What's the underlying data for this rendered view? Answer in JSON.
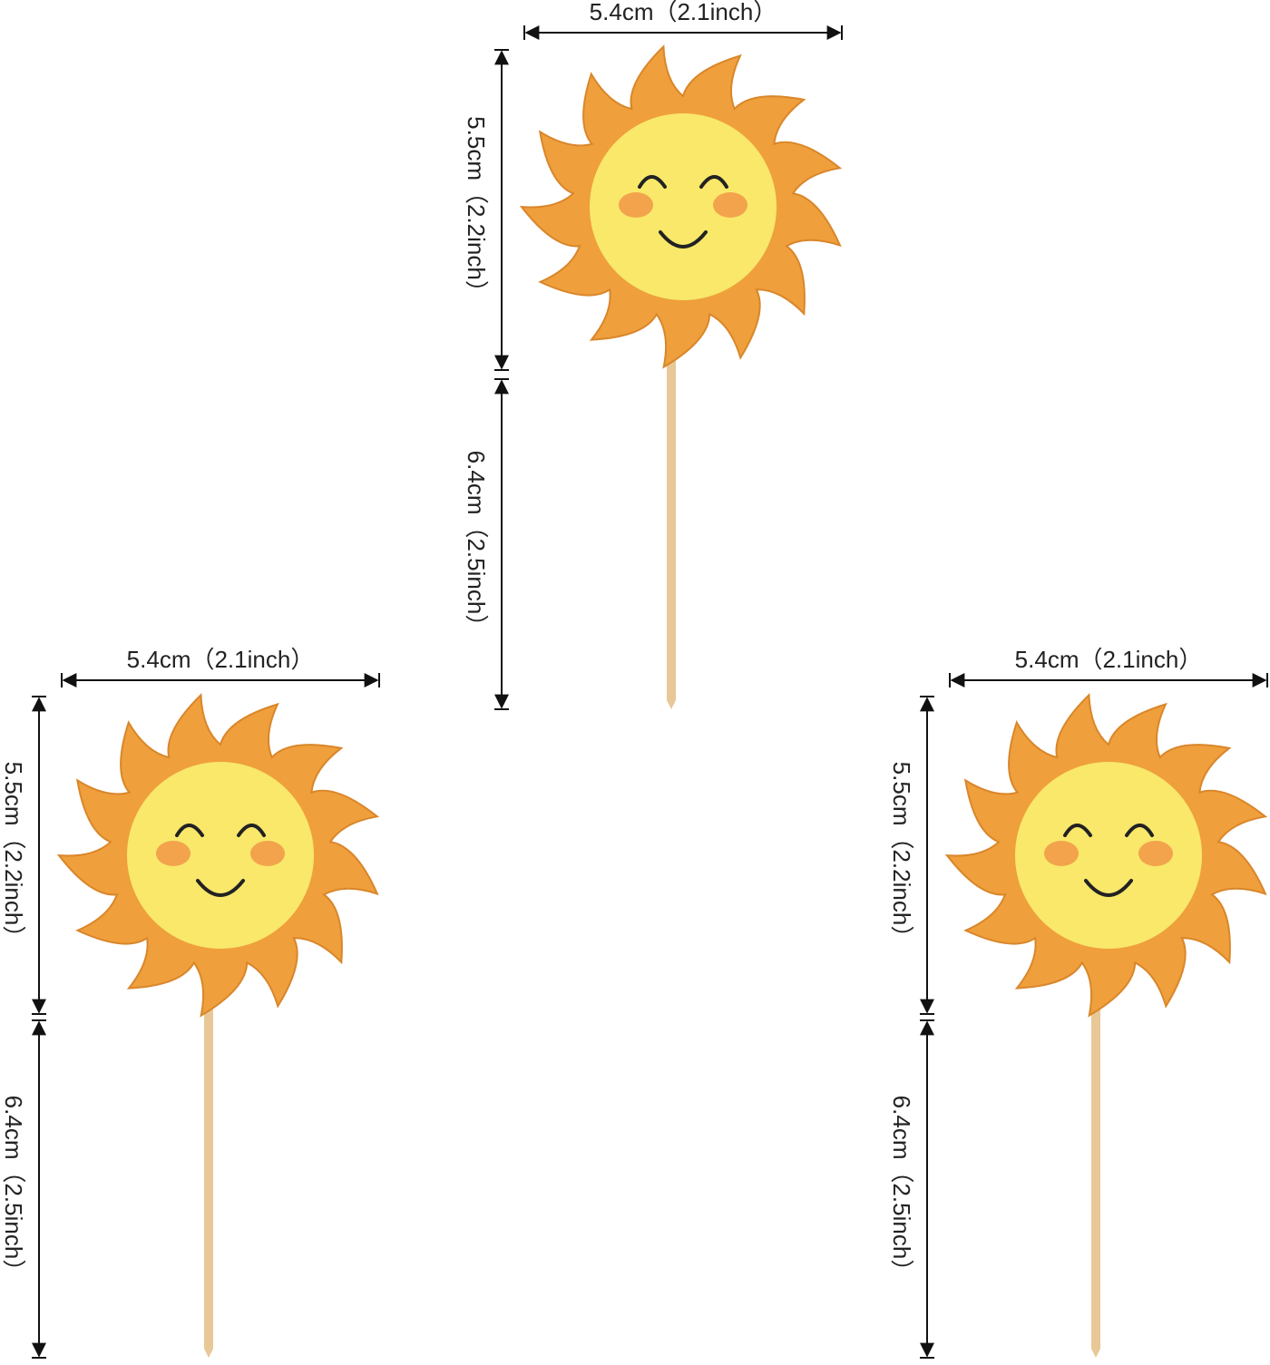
{
  "toppers": [
    {
      "width": "5.4cm（2.1inch）",
      "head_height": "5.5cm（2.2inch）",
      "stick_height": "6.4cm（2.5inch）"
    },
    {
      "width": "5.4cm（2.1inch）",
      "head_height": "5.5cm（2.2inch）",
      "stick_height": "6.4cm（2.5inch）"
    },
    {
      "width": "5.4cm（2.1inch）",
      "head_height": "5.5cm（2.2inch）",
      "stick_height": "6.4cm（2.5inch）"
    }
  ]
}
